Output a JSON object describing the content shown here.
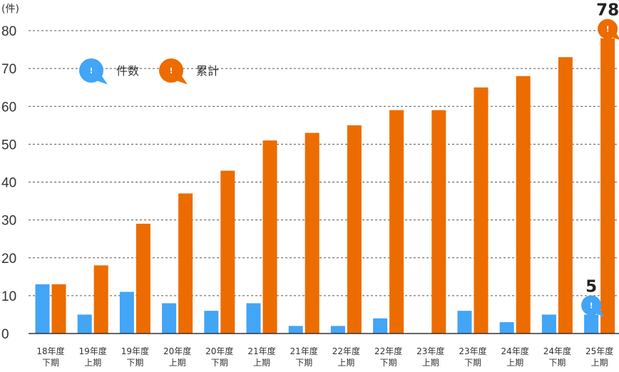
{
  "chart_data": {
    "type": "bar",
    "unit_label": "(件)",
    "ylim": [
      0,
      80
    ],
    "yticks": [
      0,
      10,
      20,
      30,
      40,
      50,
      60,
      70,
      80
    ],
    "grid": true,
    "legend_position": "top-left",
    "categories": [
      [
        "18年度",
        "下期"
      ],
      [
        "19年度",
        "上期"
      ],
      [
        "19年度",
        "下期"
      ],
      [
        "20年度",
        "上期"
      ],
      [
        "20年度",
        "下期"
      ],
      [
        "21年度",
        "上期"
      ],
      [
        "21年度",
        "下期"
      ],
      [
        "22年度",
        "上期"
      ],
      [
        "22年度",
        "下期"
      ],
      [
        "23年度",
        "上期"
      ],
      [
        "23年度",
        "下期"
      ],
      [
        "24年度",
        "上期"
      ],
      [
        "24年度",
        "下期"
      ],
      [
        "25年度",
        "上期"
      ]
    ],
    "series": [
      {
        "name": "件数",
        "color": "#42a5f5",
        "values": [
          13,
          5,
          11,
          8,
          6,
          8,
          2,
          2,
          4,
          0,
          6,
          3,
          5,
          5
        ]
      },
      {
        "name": "累計",
        "color": "#ec6c00",
        "values": [
          13,
          18,
          29,
          37,
          43,
          51,
          53,
          55,
          59,
          59,
          65,
          68,
          73,
          78
        ]
      }
    ],
    "annotations": [
      {
        "series": 0,
        "index": 13,
        "text": "5"
      },
      {
        "series": 1,
        "index": 13,
        "text": "78"
      }
    ],
    "bubble_icon": "exclamation-bubble-icon",
    "bubble_mark": "!"
  }
}
